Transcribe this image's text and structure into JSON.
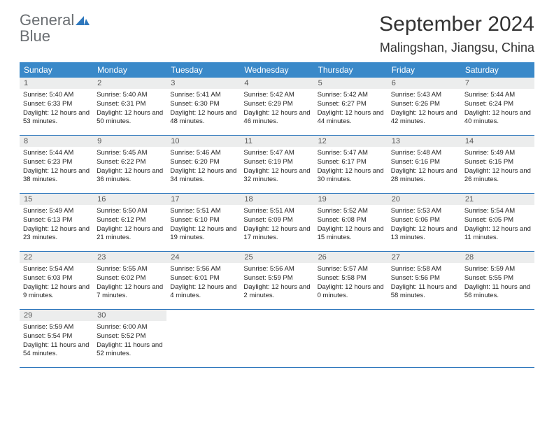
{
  "brand": {
    "name1": "General",
    "name2": "Blue"
  },
  "title": {
    "month": "September 2024",
    "location": "Malingshan, Jiangsu, China"
  },
  "colors": {
    "header_bg": "#3a89c9",
    "header_text": "#ffffff",
    "daynum_bg": "#eceded",
    "rule": "#2f78bd",
    "logo_gray": "#6b6f73",
    "logo_blue": "#2f78bd"
  },
  "daynames": [
    "Sunday",
    "Monday",
    "Tuesday",
    "Wednesday",
    "Thursday",
    "Friday",
    "Saturday"
  ],
  "weeks": [
    [
      {
        "n": "1",
        "sr": "5:40 AM",
        "ss": "6:33 PM",
        "dl": "12 hours and 53 minutes."
      },
      {
        "n": "2",
        "sr": "5:40 AM",
        "ss": "6:31 PM",
        "dl": "12 hours and 50 minutes."
      },
      {
        "n": "3",
        "sr": "5:41 AM",
        "ss": "6:30 PM",
        "dl": "12 hours and 48 minutes."
      },
      {
        "n": "4",
        "sr": "5:42 AM",
        "ss": "6:29 PM",
        "dl": "12 hours and 46 minutes."
      },
      {
        "n": "5",
        "sr": "5:42 AM",
        "ss": "6:27 PM",
        "dl": "12 hours and 44 minutes."
      },
      {
        "n": "6",
        "sr": "5:43 AM",
        "ss": "6:26 PM",
        "dl": "12 hours and 42 minutes."
      },
      {
        "n": "7",
        "sr": "5:44 AM",
        "ss": "6:24 PM",
        "dl": "12 hours and 40 minutes."
      }
    ],
    [
      {
        "n": "8",
        "sr": "5:44 AM",
        "ss": "6:23 PM",
        "dl": "12 hours and 38 minutes."
      },
      {
        "n": "9",
        "sr": "5:45 AM",
        "ss": "6:22 PM",
        "dl": "12 hours and 36 minutes."
      },
      {
        "n": "10",
        "sr": "5:46 AM",
        "ss": "6:20 PM",
        "dl": "12 hours and 34 minutes."
      },
      {
        "n": "11",
        "sr": "5:47 AM",
        "ss": "6:19 PM",
        "dl": "12 hours and 32 minutes."
      },
      {
        "n": "12",
        "sr": "5:47 AM",
        "ss": "6:17 PM",
        "dl": "12 hours and 30 minutes."
      },
      {
        "n": "13",
        "sr": "5:48 AM",
        "ss": "6:16 PM",
        "dl": "12 hours and 28 minutes."
      },
      {
        "n": "14",
        "sr": "5:49 AM",
        "ss": "6:15 PM",
        "dl": "12 hours and 26 minutes."
      }
    ],
    [
      {
        "n": "15",
        "sr": "5:49 AM",
        "ss": "6:13 PM",
        "dl": "12 hours and 23 minutes."
      },
      {
        "n": "16",
        "sr": "5:50 AM",
        "ss": "6:12 PM",
        "dl": "12 hours and 21 minutes."
      },
      {
        "n": "17",
        "sr": "5:51 AM",
        "ss": "6:10 PM",
        "dl": "12 hours and 19 minutes."
      },
      {
        "n": "18",
        "sr": "5:51 AM",
        "ss": "6:09 PM",
        "dl": "12 hours and 17 minutes."
      },
      {
        "n": "19",
        "sr": "5:52 AM",
        "ss": "6:08 PM",
        "dl": "12 hours and 15 minutes."
      },
      {
        "n": "20",
        "sr": "5:53 AM",
        "ss": "6:06 PM",
        "dl": "12 hours and 13 minutes."
      },
      {
        "n": "21",
        "sr": "5:54 AM",
        "ss": "6:05 PM",
        "dl": "12 hours and 11 minutes."
      }
    ],
    [
      {
        "n": "22",
        "sr": "5:54 AM",
        "ss": "6:03 PM",
        "dl": "12 hours and 9 minutes."
      },
      {
        "n": "23",
        "sr": "5:55 AM",
        "ss": "6:02 PM",
        "dl": "12 hours and 7 minutes."
      },
      {
        "n": "24",
        "sr": "5:56 AM",
        "ss": "6:01 PM",
        "dl": "12 hours and 4 minutes."
      },
      {
        "n": "25",
        "sr": "5:56 AM",
        "ss": "5:59 PM",
        "dl": "12 hours and 2 minutes."
      },
      {
        "n": "26",
        "sr": "5:57 AM",
        "ss": "5:58 PM",
        "dl": "12 hours and 0 minutes."
      },
      {
        "n": "27",
        "sr": "5:58 AM",
        "ss": "5:56 PM",
        "dl": "11 hours and 58 minutes."
      },
      {
        "n": "28",
        "sr": "5:59 AM",
        "ss": "5:55 PM",
        "dl": "11 hours and 56 minutes."
      }
    ],
    [
      {
        "n": "29",
        "sr": "5:59 AM",
        "ss": "5:54 PM",
        "dl": "11 hours and 54 minutes."
      },
      {
        "n": "30",
        "sr": "6:00 AM",
        "ss": "5:52 PM",
        "dl": "11 hours and 52 minutes."
      },
      {
        "empty": true
      },
      {
        "empty": true
      },
      {
        "empty": true
      },
      {
        "empty": true
      },
      {
        "empty": true
      }
    ]
  ],
  "labels": {
    "sunrise": "Sunrise: ",
    "sunset": "Sunset: ",
    "daylight": "Daylight: "
  }
}
